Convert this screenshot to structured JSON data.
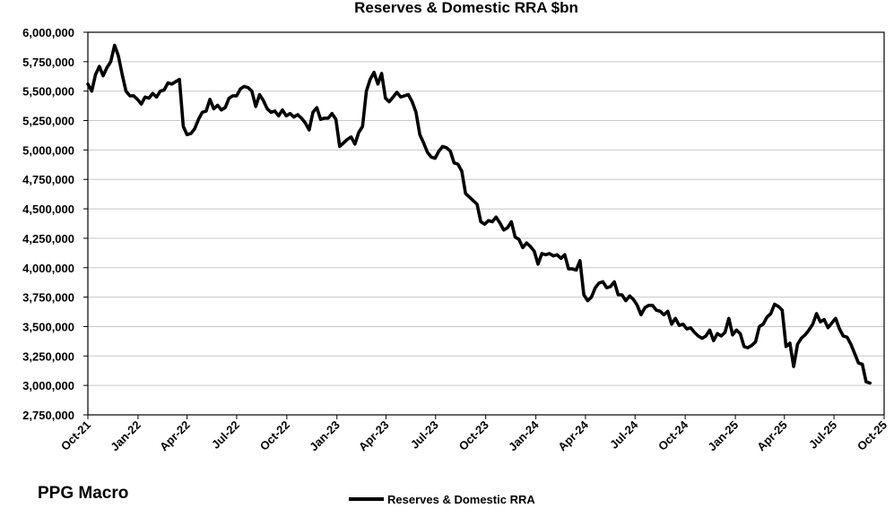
{
  "brand": "PPG Macro",
  "chart_data": {
    "type": "line",
    "title": "Reserves & Domestic RRA $bn",
    "xlabel": "",
    "ylabel": "",
    "ylim": [
      2750000,
      6000000
    ],
    "yticks": [
      2750000,
      3000000,
      3250000,
      3500000,
      3750000,
      4000000,
      4250000,
      4500000,
      4750000,
      5000000,
      5250000,
      5500000,
      5750000,
      6000000
    ],
    "ytick_labels": [
      "2,750,000",
      "3,000,000",
      "3,250,000",
      "3,500,000",
      "3,750,000",
      "4,000,000",
      "4,250,000",
      "4,500,000",
      "4,750,000",
      "5,000,000",
      "5,250,000",
      "5,500,000",
      "5,750,000",
      "6,000,000"
    ],
    "xlim": [
      "2021-10-01",
      "2025-10-01"
    ],
    "xticks": [
      "2021-10-01",
      "2022-01-01",
      "2022-04-01",
      "2022-07-01",
      "2022-10-01",
      "2023-01-01",
      "2023-04-01",
      "2023-07-01",
      "2023-10-01",
      "2024-01-01",
      "2024-04-01",
      "2024-07-01",
      "2024-10-01",
      "2025-01-01",
      "2025-04-01",
      "2025-07-01",
      "2025-10-01"
    ],
    "xtick_labels": [
      "Oct-21",
      "Jan-22",
      "Apr-22",
      "Jul-22",
      "Oct-22",
      "Jan-23",
      "Apr-23",
      "Jul-23",
      "Oct-23",
      "Jan-24",
      "Apr-24",
      "Jul-24",
      "Oct-24",
      "Jan-25",
      "Apr-25",
      "Jul-25",
      "Oct-25"
    ],
    "grid": true,
    "legend_position": "bottom-center",
    "series": [
      {
        "name": "Reserves & Domestic RRA",
        "color": "#000000",
        "points": [
          [
            "2021-10-01",
            5560000
          ],
          [
            "2021-10-08",
            5500000
          ],
          [
            "2021-10-15",
            5640000
          ],
          [
            "2021-10-22",
            5710000
          ],
          [
            "2021-10-29",
            5630000
          ],
          [
            "2021-11-05",
            5700000
          ],
          [
            "2021-11-12",
            5750000
          ],
          [
            "2021-11-19",
            5890000
          ],
          [
            "2021-11-26",
            5800000
          ],
          [
            "2021-12-03",
            5640000
          ],
          [
            "2021-12-10",
            5500000
          ],
          [
            "2021-12-17",
            5460000
          ],
          [
            "2021-12-24",
            5460000
          ],
          [
            "2021-12-31",
            5430000
          ],
          [
            "2022-01-07",
            5390000
          ],
          [
            "2022-01-14",
            5450000
          ],
          [
            "2022-01-21",
            5440000
          ],
          [
            "2022-01-28",
            5480000
          ],
          [
            "2022-02-04",
            5450000
          ],
          [
            "2022-02-11",
            5500000
          ],
          [
            "2022-02-18",
            5510000
          ],
          [
            "2022-02-25",
            5570000
          ],
          [
            "2022-03-04",
            5560000
          ],
          [
            "2022-03-11",
            5580000
          ],
          [
            "2022-03-18",
            5600000
          ],
          [
            "2022-03-25",
            5200000
          ],
          [
            "2022-04-01",
            5130000
          ],
          [
            "2022-04-08",
            5140000
          ],
          [
            "2022-04-15",
            5180000
          ],
          [
            "2022-04-22",
            5260000
          ],
          [
            "2022-04-29",
            5320000
          ],
          [
            "2022-05-06",
            5330000
          ],
          [
            "2022-05-13",
            5430000
          ],
          [
            "2022-05-20",
            5350000
          ],
          [
            "2022-05-27",
            5380000
          ],
          [
            "2022-06-03",
            5340000
          ],
          [
            "2022-06-10",
            5360000
          ],
          [
            "2022-06-17",
            5440000
          ],
          [
            "2022-06-24",
            5460000
          ],
          [
            "2022-07-01",
            5460000
          ],
          [
            "2022-07-08",
            5520000
          ],
          [
            "2022-07-15",
            5540000
          ],
          [
            "2022-07-22",
            5530000
          ],
          [
            "2022-07-29",
            5500000
          ],
          [
            "2022-08-05",
            5370000
          ],
          [
            "2022-08-12",
            5470000
          ],
          [
            "2022-08-19",
            5420000
          ],
          [
            "2022-08-26",
            5350000
          ],
          [
            "2022-09-02",
            5320000
          ],
          [
            "2022-09-09",
            5330000
          ],
          [
            "2022-09-16",
            5290000
          ],
          [
            "2022-09-23",
            5340000
          ],
          [
            "2022-09-30",
            5290000
          ],
          [
            "2022-10-07",
            5310000
          ],
          [
            "2022-10-14",
            5280000
          ],
          [
            "2022-10-21",
            5300000
          ],
          [
            "2022-10-28",
            5270000
          ],
          [
            "2022-11-04",
            5230000
          ],
          [
            "2022-11-11",
            5170000
          ],
          [
            "2022-11-18",
            5320000
          ],
          [
            "2022-11-25",
            5360000
          ],
          [
            "2022-12-02",
            5260000
          ],
          [
            "2022-12-09",
            5270000
          ],
          [
            "2022-12-16",
            5270000
          ],
          [
            "2022-12-23",
            5310000
          ],
          [
            "2022-12-30",
            5260000
          ],
          [
            "2023-01-06",
            5030000
          ],
          [
            "2023-01-13",
            5060000
          ],
          [
            "2023-01-20",
            5090000
          ],
          [
            "2023-01-27",
            5110000
          ],
          [
            "2023-02-03",
            5050000
          ],
          [
            "2023-02-10",
            5150000
          ],
          [
            "2023-02-17",
            5200000
          ],
          [
            "2023-02-24",
            5500000
          ],
          [
            "2023-03-03",
            5600000
          ],
          [
            "2023-03-10",
            5660000
          ],
          [
            "2023-03-17",
            5560000
          ],
          [
            "2023-03-24",
            5650000
          ],
          [
            "2023-03-31",
            5440000
          ],
          [
            "2023-04-07",
            5410000
          ],
          [
            "2023-04-14",
            5450000
          ],
          [
            "2023-04-21",
            5490000
          ],
          [
            "2023-04-28",
            5450000
          ],
          [
            "2023-05-05",
            5460000
          ],
          [
            "2023-05-12",
            5470000
          ],
          [
            "2023-05-19",
            5410000
          ],
          [
            "2023-05-26",
            5320000
          ],
          [
            "2023-06-02",
            5130000
          ],
          [
            "2023-06-09",
            5060000
          ],
          [
            "2023-06-16",
            4980000
          ],
          [
            "2023-06-23",
            4940000
          ],
          [
            "2023-06-30",
            4930000
          ],
          [
            "2023-07-07",
            4990000
          ],
          [
            "2023-07-14",
            5030000
          ],
          [
            "2023-07-21",
            5020000
          ],
          [
            "2023-07-28",
            4990000
          ],
          [
            "2023-08-04",
            4890000
          ],
          [
            "2023-08-11",
            4880000
          ],
          [
            "2023-08-18",
            4820000
          ],
          [
            "2023-08-25",
            4630000
          ],
          [
            "2023-09-01",
            4600000
          ],
          [
            "2023-09-08",
            4570000
          ],
          [
            "2023-09-15",
            4540000
          ],
          [
            "2023-09-22",
            4390000
          ],
          [
            "2023-09-29",
            4370000
          ],
          [
            "2023-10-06",
            4400000
          ],
          [
            "2023-10-13",
            4390000
          ],
          [
            "2023-10-20",
            4430000
          ],
          [
            "2023-10-27",
            4380000
          ],
          [
            "2023-11-03",
            4320000
          ],
          [
            "2023-11-10",
            4340000
          ],
          [
            "2023-11-17",
            4390000
          ],
          [
            "2023-11-24",
            4260000
          ],
          [
            "2023-12-01",
            4240000
          ],
          [
            "2023-12-08",
            4170000
          ],
          [
            "2023-12-15",
            4210000
          ],
          [
            "2023-12-22",
            4180000
          ],
          [
            "2023-12-29",
            4140000
          ],
          [
            "2024-01-05",
            4030000
          ],
          [
            "2024-01-12",
            4120000
          ],
          [
            "2024-01-19",
            4110000
          ],
          [
            "2024-01-26",
            4120000
          ],
          [
            "2024-02-02",
            4100000
          ],
          [
            "2024-02-09",
            4110000
          ],
          [
            "2024-02-16",
            4080000
          ],
          [
            "2024-02-23",
            4110000
          ],
          [
            "2024-03-01",
            3990000
          ],
          [
            "2024-03-08",
            3990000
          ],
          [
            "2024-03-15",
            3980000
          ],
          [
            "2024-03-22",
            4060000
          ],
          [
            "2024-03-29",
            3770000
          ],
          [
            "2024-04-05",
            3720000
          ],
          [
            "2024-04-12",
            3750000
          ],
          [
            "2024-04-19",
            3830000
          ],
          [
            "2024-04-26",
            3870000
          ],
          [
            "2024-05-03",
            3880000
          ],
          [
            "2024-05-10",
            3830000
          ],
          [
            "2024-05-17",
            3840000
          ],
          [
            "2024-05-24",
            3880000
          ],
          [
            "2024-05-31",
            3770000
          ],
          [
            "2024-06-07",
            3770000
          ],
          [
            "2024-06-14",
            3720000
          ],
          [
            "2024-06-21",
            3760000
          ],
          [
            "2024-06-28",
            3730000
          ],
          [
            "2024-07-05",
            3680000
          ],
          [
            "2024-07-12",
            3600000
          ],
          [
            "2024-07-19",
            3660000
          ],
          [
            "2024-07-26",
            3680000
          ],
          [
            "2024-08-02",
            3680000
          ],
          [
            "2024-08-09",
            3640000
          ],
          [
            "2024-08-16",
            3630000
          ],
          [
            "2024-08-23",
            3600000
          ],
          [
            "2024-08-30",
            3630000
          ],
          [
            "2024-09-06",
            3520000
          ],
          [
            "2024-09-13",
            3570000
          ],
          [
            "2024-09-20",
            3510000
          ],
          [
            "2024-09-27",
            3520000
          ],
          [
            "2024-10-04",
            3480000
          ],
          [
            "2024-10-11",
            3490000
          ],
          [
            "2024-10-18",
            3450000
          ],
          [
            "2024-10-25",
            3420000
          ],
          [
            "2024-11-01",
            3400000
          ],
          [
            "2024-11-08",
            3420000
          ],
          [
            "2024-11-15",
            3470000
          ],
          [
            "2024-11-22",
            3380000
          ],
          [
            "2024-11-29",
            3440000
          ],
          [
            "2024-12-06",
            3420000
          ],
          [
            "2024-12-13",
            3450000
          ],
          [
            "2024-12-20",
            3570000
          ],
          [
            "2024-12-27",
            3430000
          ],
          [
            "2025-01-03",
            3470000
          ],
          [
            "2025-01-10",
            3440000
          ],
          [
            "2025-01-17",
            3330000
          ],
          [
            "2025-01-24",
            3320000
          ],
          [
            "2025-01-31",
            3340000
          ],
          [
            "2025-02-07",
            3370000
          ],
          [
            "2025-02-14",
            3500000
          ],
          [
            "2025-02-21",
            3520000
          ],
          [
            "2025-02-28",
            3580000
          ],
          [
            "2025-03-07",
            3610000
          ],
          [
            "2025-03-14",
            3690000
          ],
          [
            "2025-03-21",
            3670000
          ],
          [
            "2025-03-28",
            3640000
          ],
          [
            "2025-04-04",
            3330000
          ],
          [
            "2025-04-11",
            3360000
          ],
          [
            "2025-04-18",
            3160000
          ],
          [
            "2025-04-25",
            3350000
          ],
          [
            "2025-05-02",
            3400000
          ],
          [
            "2025-05-09",
            3430000
          ],
          [
            "2025-05-16",
            3470000
          ],
          [
            "2025-05-23",
            3520000
          ],
          [
            "2025-05-30",
            3610000
          ],
          [
            "2025-06-06",
            3540000
          ],
          [
            "2025-06-13",
            3560000
          ],
          [
            "2025-06-20",
            3490000
          ],
          [
            "2025-06-27",
            3530000
          ],
          [
            "2025-07-04",
            3570000
          ],
          [
            "2025-07-11",
            3480000
          ],
          [
            "2025-07-18",
            3420000
          ],
          [
            "2025-07-25",
            3410000
          ],
          [
            "2025-08-01",
            3350000
          ],
          [
            "2025-08-08",
            3270000
          ],
          [
            "2025-08-15",
            3190000
          ],
          [
            "2025-08-22",
            3180000
          ],
          [
            "2025-08-29",
            3030000
          ],
          [
            "2025-09-05",
            3020000
          ]
        ]
      }
    ]
  }
}
